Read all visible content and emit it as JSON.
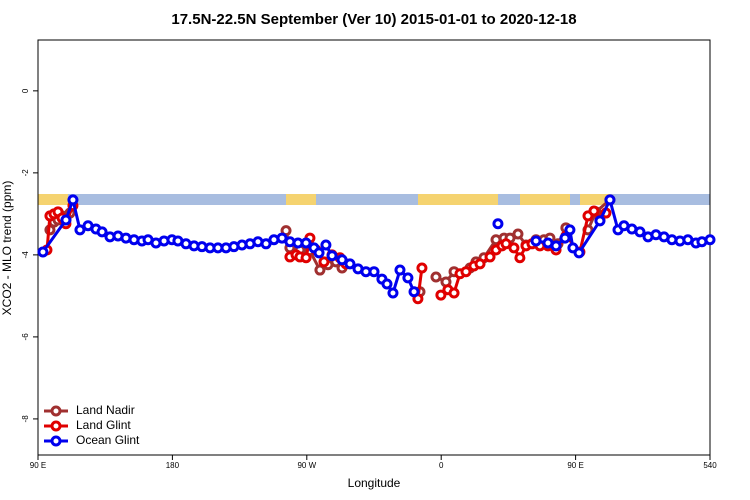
{
  "chart_data": {
    "type": "line",
    "title": "17.5N-22.5N September (Ver 10)   2015-01-01 to 2020-12-18",
    "x_label": "Longitude",
    "y_label": "XCO2 - MLO trend (ppm)",
    "xlim": [
      90,
      540
    ],
    "xticks": [
      {
        "value": 90,
        "label": "90 E"
      },
      180,
      {
        "value": 270,
        "label": "90 W"
      },
      {
        "value": 360,
        "label": "0"
      },
      {
        "value": 450,
        "label": "90 E"
      },
      540
    ],
    "ylim": [
      -8.88,
      1.24
    ],
    "yticks": [
      0,
      -2,
      -4,
      -6,
      -8
    ],
    "grid": false,
    "legend": "bottom-left",
    "series": [
      {
        "name": "Land Nadir",
        "color": "#a03030",
        "x": [
          98.0,
          100.7,
          103.4,
          106.1,
          108.7,
          111.4,
          null,
          256.1,
          258.7,
          265.4,
          272.1,
          278.8,
          284.2,
          289.5,
          293.6,
          null,
          345.8,
          null,
          356.5,
          363.2,
          368.6,
          379.3,
          383.3,
          388.6,
          396.7,
          402.1,
          406.1,
          411.4,
          416.8,
          423.5,
          428.8,
          432.8,
          438.2,
          443.5,
          null,
          458.3,
          463.6,
          473.0
        ],
        "values": [
          -3.39,
          -3.2,
          -3.15,
          -3.05,
          -3.15,
          -2.98,
          null,
          -3.41,
          -3.83,
          -3.88,
          -3.9,
          -4.37,
          -4.24,
          -4.17,
          -4.32,
          null,
          -4.9,
          null,
          -4.54,
          -4.66,
          -4.41,
          -4.32,
          -4.17,
          -4.07,
          -3.63,
          -3.59,
          -3.59,
          -3.49,
          -3.76,
          -3.63,
          -3.63,
          -3.59,
          -3.73,
          -3.34,
          null,
          -3.39,
          -2.95,
          -2.66
        ]
      },
      {
        "name": "Land Glint",
        "color": "#e00000",
        "x": [
          96.0,
          98.0,
          100.7,
          103.4,
          106.1,
          108.7,
          113.4,
          null,
          258.7,
          262.8,
          265.4,
          269.5,
          272.1,
          276.2,
          281.5,
          286.9,
          292.2,
          296.2,
          null,
          344.4,
          347.1,
          null,
          359.8,
          364.5,
          368.6,
          372.6,
          376.6,
          381.9,
          386.0,
          392.7,
          396.7,
          400.7,
          403.4,
          408.7,
          412.7,
          416.8,
          420.8,
          426.1,
          431.5,
          436.9,
          443.5,
          452.9,
          458.3,
          462.3,
          466.3,
          470.3
        ],
        "values": [
          -3.88,
          -3.05,
          -3.0,
          -2.95,
          -3.1,
          -3.24,
          -2.8,
          null,
          -4.05,
          -4.0,
          -4.05,
          -4.07,
          -3.59,
          -3.88,
          -4.17,
          -4.0,
          -4.07,
          -4.22,
          null,
          -5.07,
          -4.32,
          null,
          -4.98,
          -4.85,
          -4.93,
          -4.46,
          -4.41,
          -4.27,
          -4.22,
          -4.05,
          -3.88,
          -3.78,
          -3.73,
          -3.83,
          -4.07,
          -3.78,
          -3.73,
          -3.78,
          -3.78,
          -3.88,
          -3.54,
          -3.93,
          -3.05,
          -2.93,
          -3.15,
          -2.98
        ]
      },
      {
        "name": "Ocean Glint",
        "color": "#0000ee",
        "x": [
          93.3,
          108.7,
          113.4,
          118.1,
          123.5,
          128.8,
          132.9,
          138.2,
          143.6,
          148.9,
          154.3,
          159.6,
          163.7,
          169.0,
          174.4,
          179.7,
          183.7,
          189.1,
          194.5,
          199.8,
          205.2,
          210.5,
          215.9,
          221.2,
          226.6,
          232.0,
          237.3,
          242.7,
          248.0,
          253.4,
          258.7,
          264.1,
          269.5,
          274.8,
          278.2,
          282.8,
          286.9,
          293.6,
          298.9,
          304.3,
          309.6,
          315.0,
          320.3,
          323.7,
          327.7,
          332.4,
          337.7,
          341.8,
          null,
          398.0,
          null,
          423.5,
          431.5,
          436.9,
          442.9,
          446.2,
          448.2,
          452.3,
          466.3,
          473.0,
          478.4,
          482.4,
          487.7,
          493.1,
          498.5,
          503.8,
          509.2,
          514.5,
          519.9,
          525.2,
          530.6,
          534.6,
          540.0
        ],
        "values": [
          -3.93,
          -3.15,
          -2.66,
          -3.39,
          -3.29,
          -3.37,
          -3.44,
          -3.56,
          -3.54,
          -3.59,
          -3.63,
          -3.66,
          -3.63,
          -3.71,
          -3.66,
          -3.63,
          -3.66,
          -3.73,
          -3.78,
          -3.8,
          -3.83,
          -3.83,
          -3.83,
          -3.8,
          -3.76,
          -3.73,
          -3.68,
          -3.73,
          -3.63,
          -3.59,
          -3.68,
          -3.71,
          -3.71,
          -3.83,
          -3.95,
          -3.76,
          -4.02,
          -4.12,
          -4.22,
          -4.34,
          -4.41,
          -4.41,
          -4.59,
          -4.71,
          -4.93,
          -4.37,
          -4.56,
          -4.9,
          null,
          -3.24,
          null,
          -3.66,
          -3.71,
          -3.78,
          -3.59,
          -3.39,
          -3.83,
          -3.95,
          -3.17,
          -2.66,
          -3.39,
          -3.29,
          -3.37,
          -3.44,
          -3.56,
          -3.51,
          -3.56,
          -3.63,
          -3.66,
          -3.63,
          -3.71,
          -3.68,
          -3.63
        ]
      }
    ]
  }
}
